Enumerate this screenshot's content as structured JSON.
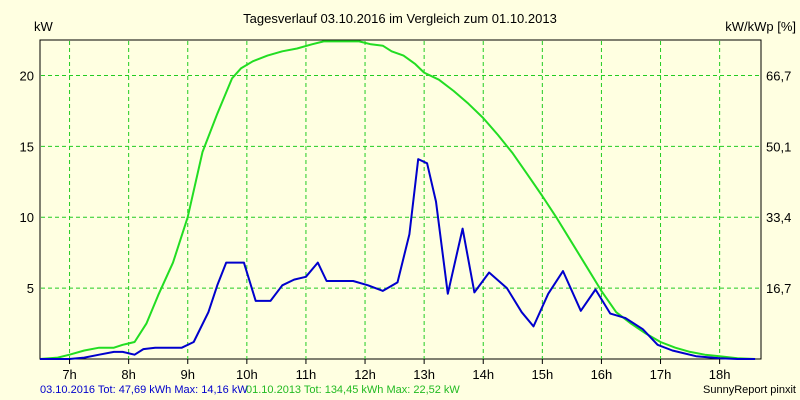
{
  "chart_data": {
    "type": "line",
    "title": "Tagesverlauf 03.10.2016 im Vergleich zum 01.10.2013",
    "ylabel_left": "kW",
    "ylabel_right": "kW/kWp [%]",
    "xlim": [
      6.5,
      18.7
    ],
    "ylim": [
      0,
      22.5
    ],
    "x_ticks": [
      7,
      8,
      9,
      10,
      11,
      12,
      13,
      14,
      15,
      16,
      17,
      18
    ],
    "x_tick_labels": [
      "7h",
      "8h",
      "9h",
      "10h",
      "11h",
      "12h",
      "13h",
      "14h",
      "15h",
      "16h",
      "17h",
      "18h"
    ],
    "y_left_ticks": [
      5,
      10,
      15,
      20
    ],
    "y_left_tick_labels": [
      "5",
      "10",
      "15",
      "20"
    ],
    "y_right_ticks": [
      5,
      10,
      15,
      20
    ],
    "y_right_tick_labels": [
      "16,7",
      "33,4",
      "50,1",
      "66,7"
    ],
    "grid": true,
    "colors": {
      "background": "#ffffe1",
      "grid": "#22cc22",
      "series_2016": "#0000cc",
      "series_2013": "#22dd22"
    },
    "series": [
      {
        "name": "03.10.2016",
        "color": "#0000cc",
        "x": [
          6.5,
          7.0,
          7.25,
          7.5,
          7.75,
          7.9,
          8.1,
          8.25,
          8.45,
          8.65,
          8.9,
          9.1,
          9.35,
          9.5,
          9.65,
          9.8,
          9.95,
          10.15,
          10.4,
          10.6,
          10.8,
          11.0,
          11.2,
          11.35,
          11.55,
          11.8,
          12.05,
          12.3,
          12.55,
          12.75,
          12.9,
          13.05,
          13.2,
          13.4,
          13.65,
          13.85,
          14.1,
          14.4,
          14.65,
          14.85,
          15.1,
          15.35,
          15.65,
          15.9,
          16.15,
          16.4,
          16.7,
          16.95,
          17.2,
          17.6,
          18.0,
          18.3,
          18.6
        ],
        "values": [
          0,
          0,
          0.1,
          0.3,
          0.5,
          0.5,
          0.3,
          0.7,
          0.8,
          0.8,
          0.8,
          1.2,
          3.3,
          5.2,
          6.8,
          6.8,
          6.8,
          4.1,
          4.1,
          5.2,
          5.6,
          5.8,
          6.8,
          5.5,
          5.5,
          5.5,
          5.2,
          4.8,
          5.4,
          8.8,
          14.1,
          13.8,
          11.1,
          4.6,
          9.2,
          4.7,
          6.1,
          5.0,
          3.3,
          2.3,
          4.6,
          6.2,
          3.4,
          4.9,
          3.2,
          2.9,
          2.1,
          1.0,
          0.6,
          0.2,
          0.05,
          0,
          0
        ]
      },
      {
        "name": "01.10.2013",
        "color": "#22dd22",
        "x": [
          6.5,
          6.8,
          7.0,
          7.25,
          7.5,
          7.75,
          7.9,
          8.1,
          8.3,
          8.5,
          8.75,
          9.0,
          9.25,
          9.5,
          9.75,
          9.9,
          10.1,
          10.35,
          10.6,
          10.85,
          11.1,
          11.3,
          11.5,
          11.7,
          11.9,
          12.1,
          12.3,
          12.45,
          12.65,
          12.85,
          13.0,
          13.25,
          13.5,
          13.75,
          14.0,
          14.25,
          14.5,
          14.75,
          15.0,
          15.25,
          15.5,
          15.75,
          16.0,
          16.25,
          16.5,
          16.75,
          17.0,
          17.25,
          17.5,
          17.75,
          18.0,
          18.3,
          18.6
        ],
        "values": [
          0,
          0.1,
          0.3,
          0.6,
          0.8,
          0.8,
          1.0,
          1.2,
          2.5,
          4.5,
          6.8,
          10.0,
          14.6,
          17.3,
          19.8,
          20.5,
          21.0,
          21.4,
          21.7,
          21.9,
          22.2,
          22.4,
          22.4,
          22.4,
          22.4,
          22.2,
          22.1,
          21.7,
          21.4,
          20.8,
          20.2,
          19.7,
          18.9,
          18.0,
          17.0,
          15.8,
          14.5,
          13.0,
          11.5,
          9.9,
          8.2,
          6.5,
          4.8,
          3.3,
          2.5,
          1.8,
          1.2,
          0.8,
          0.5,
          0.3,
          0.2,
          0.05,
          0
        ]
      }
    ]
  },
  "footer": {
    "legend_2016": "03.10.2016 Tot: 47,69 kWh Max: 14,16 kW",
    "legend_2013": "01.10.2013 Tot: 134,45 kWh Max: 22,52 kW",
    "credit": "SunnyReport pinxit"
  }
}
